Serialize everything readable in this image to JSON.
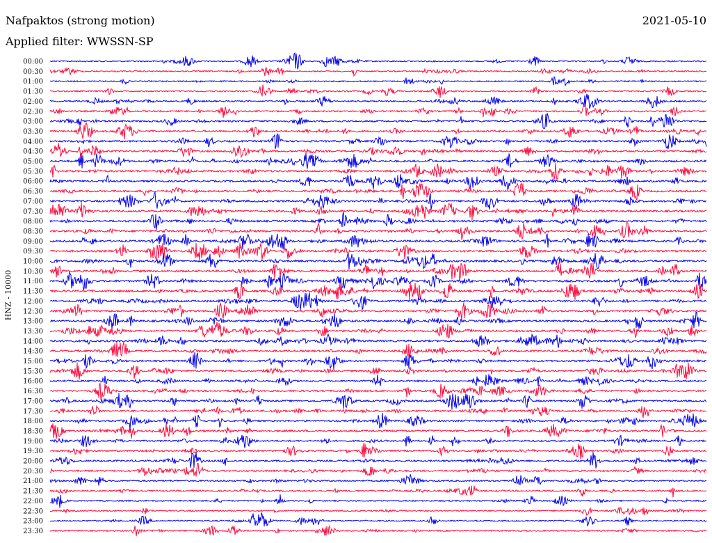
{
  "header": {
    "station": "Nafpaktos (strong motion)",
    "date": "2021-05-10",
    "filter": "Applied filter: WWSSN-SP"
  },
  "colors": {
    "blue": "#0000ee",
    "red": "#ff0a3c"
  },
  "chart_data": {
    "type": "line",
    "title": "Nafpaktos (strong motion)",
    "subtitle": "Applied filter: WWSSN-SP",
    "ylabel": "HNZ - 10000",
    "xlabel": "",
    "grid": false,
    "row_labels": [
      "00:00",
      "00:30",
      "01:00",
      "01:30",
      "02:00",
      "02:30",
      "03:00",
      "03:30",
      "04:00",
      "04:30",
      "05:00",
      "05:30",
      "06:00",
      "06:30",
      "07:00",
      "07:30",
      "08:00",
      "08:30",
      "09:00",
      "09:30",
      "10:00",
      "10:30",
      "11:00",
      "11:30",
      "12:00",
      "12:30",
      "13:00",
      "13:30",
      "14:00",
      "14:30",
      "15:00",
      "15:30",
      "16:00",
      "16:30",
      "17:00",
      "17:30",
      "18:00",
      "18:30",
      "19:00",
      "19:30",
      "20:00",
      "20:30",
      "21:00",
      "21:30",
      "22:00",
      "22:30",
      "23:00",
      "23:30"
    ],
    "row_colors": [
      "blue",
      "red"
    ],
    "activity_level": [
      0.3,
      0.25,
      0.25,
      0.3,
      0.45,
      0.5,
      0.6,
      0.65,
      0.65,
      0.7,
      0.8,
      0.8,
      0.65,
      0.7,
      0.8,
      0.8,
      0.75,
      0.8,
      0.85,
      0.8,
      0.85,
      0.85,
      0.9,
      0.9,
      0.8,
      0.75,
      0.8,
      0.75,
      0.75,
      0.7,
      0.7,
      0.6,
      0.6,
      0.65,
      0.65,
      0.65,
      0.6,
      0.7,
      0.55,
      0.5,
      0.6,
      0.55,
      0.45,
      0.4,
      0.3,
      0.25,
      0.3,
      0.25
    ]
  }
}
